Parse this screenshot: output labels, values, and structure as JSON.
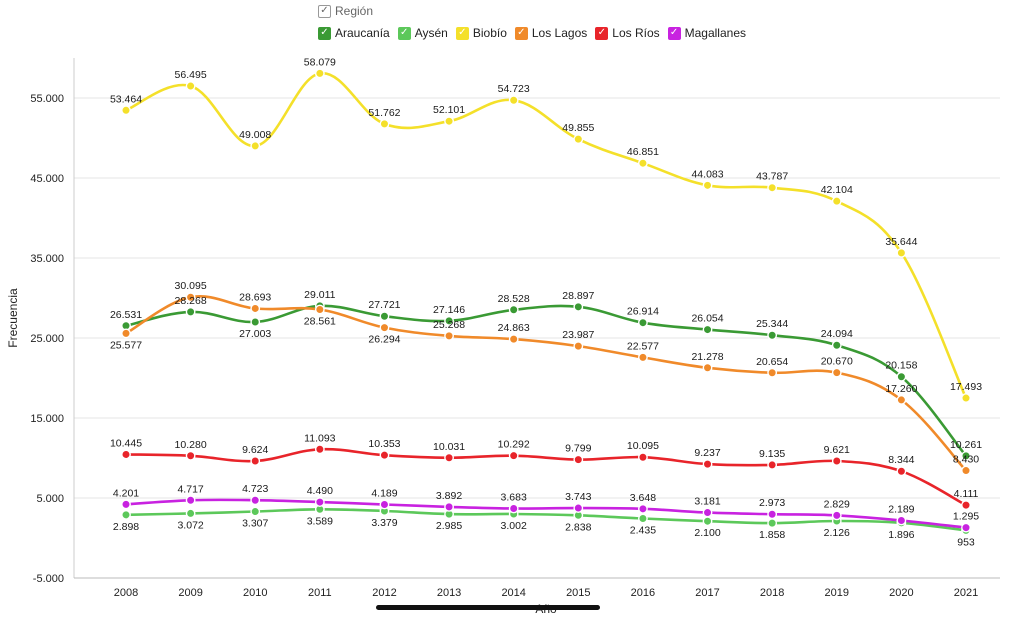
{
  "legend": {
    "title": "Región",
    "check": "✓"
  },
  "chart_data": {
    "type": "line",
    "x": [
      "2008",
      "2009",
      "2010",
      "2011",
      "2012",
      "2013",
      "2014",
      "2015",
      "2016",
      "2017",
      "2018",
      "2019",
      "2020",
      "2021"
    ],
    "xlabel": "Año",
    "ylabel": "Frecuencia",
    "ylim": [
      -5000,
      60000
    ],
    "yticks": [
      -5000,
      5000,
      15000,
      25000,
      35000,
      45000,
      55000
    ],
    "ytick_labels": [
      "-5.000",
      "5.000",
      "15.000",
      "25.000",
      "35.000",
      "45.000",
      "55.000"
    ],
    "grid": true,
    "legend_position": "top",
    "series": [
      {
        "name": "Araucanía",
        "color": "#3a9a34",
        "values": [
          26531,
          28268,
          27003,
          29011,
          27721,
          27146,
          28528,
          28897,
          26914,
          26054,
          25344,
          24094,
          20158,
          10261
        ],
        "labels": [
          "26.531",
          "28.268",
          "27.003",
          "29.011",
          "27.721",
          "27.146",
          "28.528",
          "28.897",
          "26.914",
          "26.054",
          "25.344",
          "24.094",
          "20.158",
          "10.261"
        ]
      },
      {
        "name": "Aysén",
        "color": "#5cc85a",
        "values": [
          2898,
          3072,
          3307,
          3589,
          3379,
          2985,
          3002,
          2838,
          2435,
          2100,
          1858,
          2126,
          1896,
          953
        ],
        "labels": [
          "2.898",
          "3.072",
          "3.307",
          "3.589",
          "3.379",
          "2.985",
          "3.002",
          "2.838",
          "2.435",
          "2.100",
          "1.858",
          "2.126",
          "1.896",
          "953"
        ]
      },
      {
        "name": "Biobío",
        "color": "#f4e02a",
        "values": [
          53464,
          56495,
          49008,
          58079,
          51762,
          52101,
          54723,
          49855,
          46851,
          44083,
          43787,
          42104,
          35644,
          17493
        ],
        "labels": [
          "53.464",
          "56.495",
          "49.008",
          "58.079",
          "51.762",
          "52.101",
          "54.723",
          "49.855",
          "46.851",
          "44.083",
          "43.787",
          "42.104",
          "35.644",
          "17.493"
        ]
      },
      {
        "name": "Los Lagos",
        "color": "#f08a2a",
        "values": [
          25577,
          30095,
          28693,
          28561,
          26294,
          25268,
          24863,
          23987,
          22577,
          21278,
          20654,
          20670,
          17260,
          8430
        ],
        "labels": [
          "25.577",
          "30.095",
          "28.693",
          "28.561",
          "26.294",
          "25.268",
          "24.863",
          "23.987",
          "22.577",
          "21.278",
          "20.654",
          "20.670",
          "17.260",
          "8.430"
        ]
      },
      {
        "name": "Los Ríos",
        "color": "#e8242a",
        "values": [
          10445,
          10280,
          9624,
          11093,
          10353,
          10031,
          10292,
          9799,
          10095,
          9237,
          9135,
          9621,
          8344,
          4111
        ],
        "labels": [
          "10.445",
          "10.280",
          "9.624",
          "11.093",
          "10.353",
          "10.031",
          "10.292",
          "9.799",
          "10.095",
          "9.237",
          "9.135",
          "9.621",
          "8.344",
          "4.111"
        ]
      },
      {
        "name": "Magallanes",
        "color": "#c822e0",
        "values": [
          4201,
          4717,
          4723,
          4490,
          4189,
          3892,
          3683,
          3743,
          3648,
          3181,
          2973,
          2829,
          2189,
          1295
        ],
        "labels": [
          "4.201",
          "4.717",
          "4.723",
          "4.490",
          "4.189",
          "3.892",
          "3.683",
          "3.743",
          "3.648",
          "3.181",
          "2.973",
          "2.829",
          "2.189",
          "1.295"
        ]
      }
    ]
  }
}
